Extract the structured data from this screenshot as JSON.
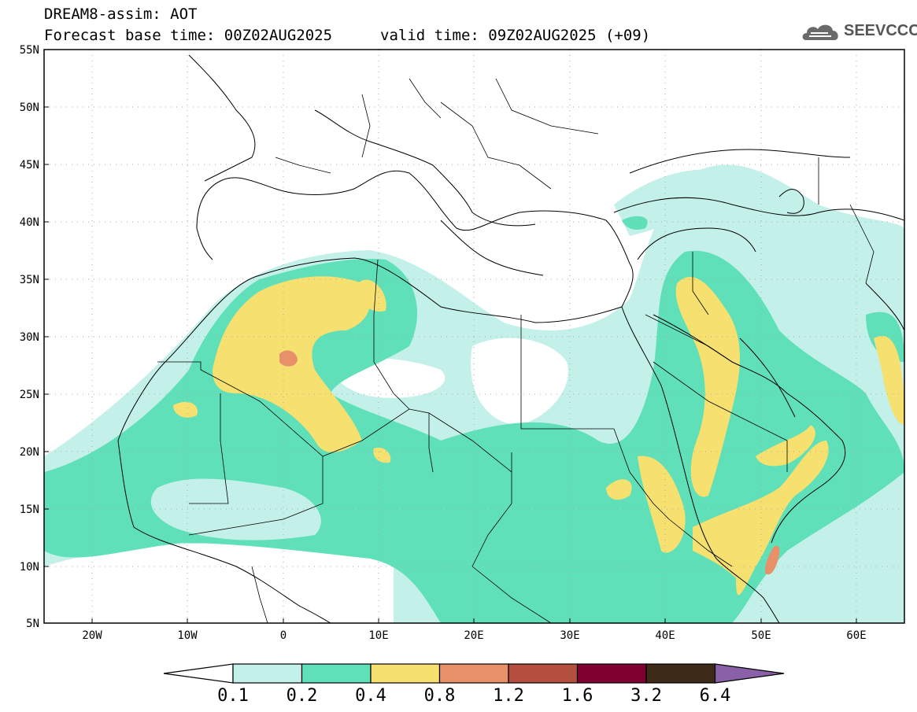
{
  "header": {
    "title": "DREAM8-assim: AOT",
    "base_time": "Forecast base time: 00Z02AUG2025",
    "valid_time": "valid time: 09Z02AUG2025 (+09)"
  },
  "logo": {
    "text": "SEEVCCC",
    "icon": "cloud-icon"
  },
  "map": {
    "lat_labels": [
      "55N",
      "50N",
      "45N",
      "40N",
      "35N",
      "30N",
      "25N",
      "20N",
      "15N",
      "10N",
      "5N"
    ],
    "lon_labels": [
      "20W",
      "10W",
      "0",
      "10E",
      "20E",
      "30E",
      "40E",
      "50E",
      "60E"
    ]
  },
  "colorbar": {
    "labels": [
      "0.1",
      "0.2",
      "0.4",
      "0.8",
      "1.2",
      "1.6",
      "3.2",
      "6.4"
    ],
    "colors": [
      "#c4f0ea",
      "#5fe0b8",
      "#f5e070",
      "#e8906a",
      "#b55040",
      "#800030",
      "#3e2a18",
      "#8a60a8"
    ]
  }
}
